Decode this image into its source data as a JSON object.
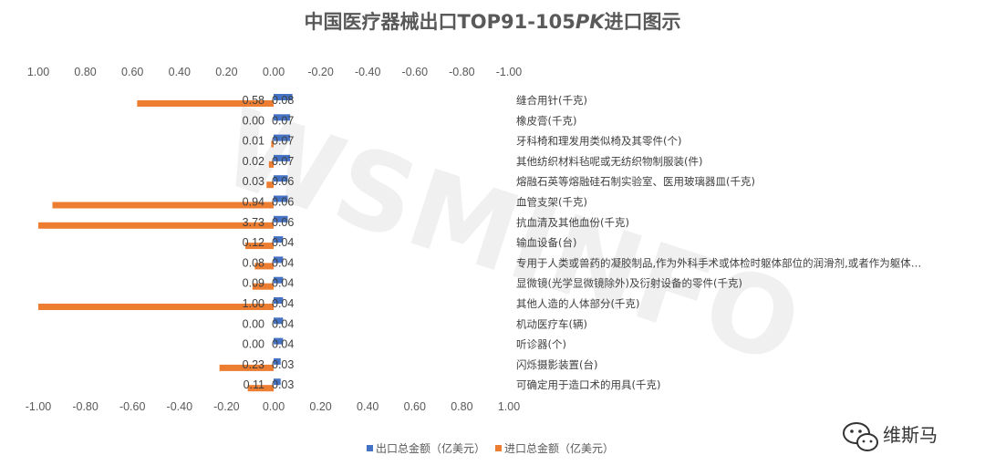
{
  "chart_data": {
    "type": "bar",
    "orientation": "horizontal",
    "title_parts": [
      "中国医疗器械出口TOP91-105",
      "PK",
      "进口图示"
    ],
    "top_axis_ticks": [
      "1.00",
      "0.80",
      "0.60",
      "0.40",
      "0.20",
      "0.00",
      "-0.20",
      "-0.40",
      "-0.60",
      "-0.80",
      "-1.00"
    ],
    "bottom_axis_ticks": [
      "-1.00",
      "-0.80",
      "-0.60",
      "-0.40",
      "-0.20",
      "0.00",
      "0.20",
      "0.40",
      "0.60",
      "0.80",
      "1.00"
    ],
    "xlim": [
      -1.0,
      1.0
    ],
    "categories": [
      "缝合用针(千克)",
      "橡皮膏(千克)",
      "牙科椅和理发用类似椅及其零件(个)",
      "其他纺织材料毡呢或无纺织物制服装(件)",
      "熔融石英等熔融硅石制实验室、医用玻璃器皿(千克)",
      "血管支架(千克)",
      "抗血清及其他血份(千克)",
      "输血设备(台)",
      "专用于人类或兽药的凝胶制品,作为外科手术或体检时躯体部位的润滑剂,或者作为躯体…",
      "显微镜(光学显微镜除外)及衍射设备的零件(千克)",
      "其他人造的人体部分(千克)",
      "机动医疗车(辆)",
      "听诊器(个)",
      "闪烁摄影装置(台)",
      "可确定用于造口术的用具(千克)"
    ],
    "series": [
      {
        "name": "出口总金额（亿美元）",
        "color": "#4472C4",
        "values": [
          0.08,
          0.07,
          0.07,
          0.07,
          0.06,
          0.06,
          0.06,
          0.04,
          0.04,
          0.04,
          0.04,
          0.04,
          0.04,
          0.03,
          0.03
        ],
        "labels": [
          "0.08",
          "0.07",
          "0.07",
          "0.07",
          "0.06",
          "0.06",
          "0.06",
          "0.04",
          "0.04",
          "0.04",
          "0.04",
          "0.04",
          "0.04",
          "0.03",
          "0.03"
        ]
      },
      {
        "name": "进口总金额（亿美元）",
        "color": "#ED7D31",
        "values": [
          0.58,
          0.0,
          0.01,
          0.02,
          0.03,
          0.94,
          3.73,
          0.12,
          0.08,
          0.09,
          1.0,
          0.0,
          0.0,
          0.23,
          0.11
        ],
        "labels": [
          "0.58",
          "0.00",
          "0.01",
          "0.02",
          "0.03",
          "0.94",
          "3.73",
          "0.12",
          "0.08",
          "0.09",
          "1.00",
          "0.00",
          "0.00",
          "0.23",
          "0.11"
        ]
      }
    ],
    "grid": false,
    "legend_position": "bottom"
  },
  "watermark": "WSMINFO",
  "brand": {
    "icon": "wechat-icon",
    "name": "维斯马"
  }
}
